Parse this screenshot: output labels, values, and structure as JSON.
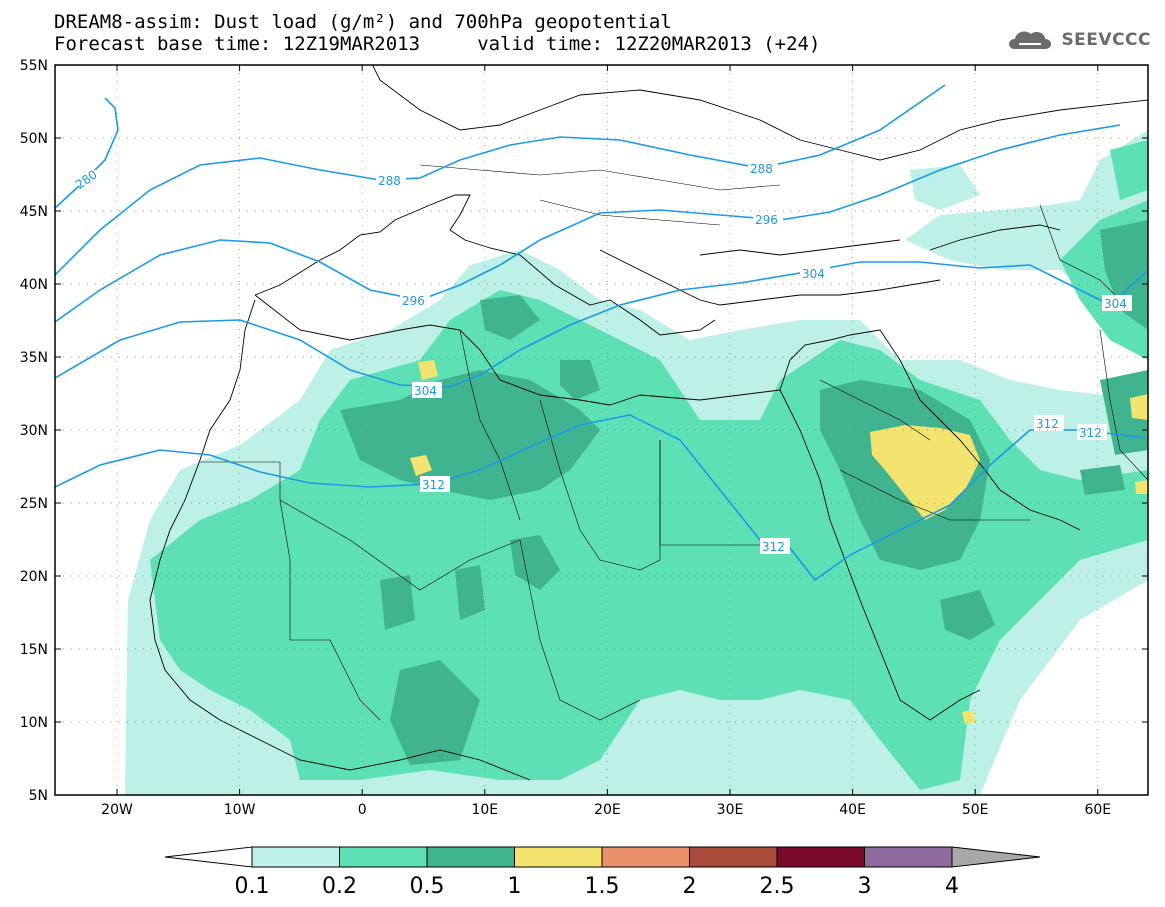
{
  "header": {
    "title_line1": "DREAM8-assim: Dust load (g/m²) and 700hPa geopotential",
    "title_line2": "Forecast base time: 12Z19MAR2013     valid time: 12Z20MAR2013 (+24)"
  },
  "logo": {
    "text": "SEEVCCC",
    "icon": "cloud-logo-icon"
  },
  "map": {
    "lat_labels": [
      "55N",
      "50N",
      "45N",
      "40N",
      "35N",
      "30N",
      "25N",
      "20N",
      "15N",
      "10N",
      "5N"
    ],
    "lon_labels": [
      "20W",
      "10W",
      "0",
      "10E",
      "20E",
      "30E",
      "40E",
      "50E",
      "60E"
    ],
    "contour_labels": [
      "280",
      "288",
      "288",
      "296",
      "296",
      "304",
      "304",
      "304",
      "312",
      "312",
      "312",
      "312"
    ]
  },
  "colorbar": {
    "labels": [
      "0.1",
      "0.2",
      "0.5",
      "1",
      "1.5",
      "2",
      "2.5",
      "3",
      "4"
    ],
    "colors": [
      "#bdf0e6",
      "#5ee0b5",
      "#3fb48f",
      "#f3e470",
      "#e9916a",
      "#a94b3a",
      "#7a0a2c",
      "#8e6a9e",
      "#a8a8a8"
    ]
  }
}
